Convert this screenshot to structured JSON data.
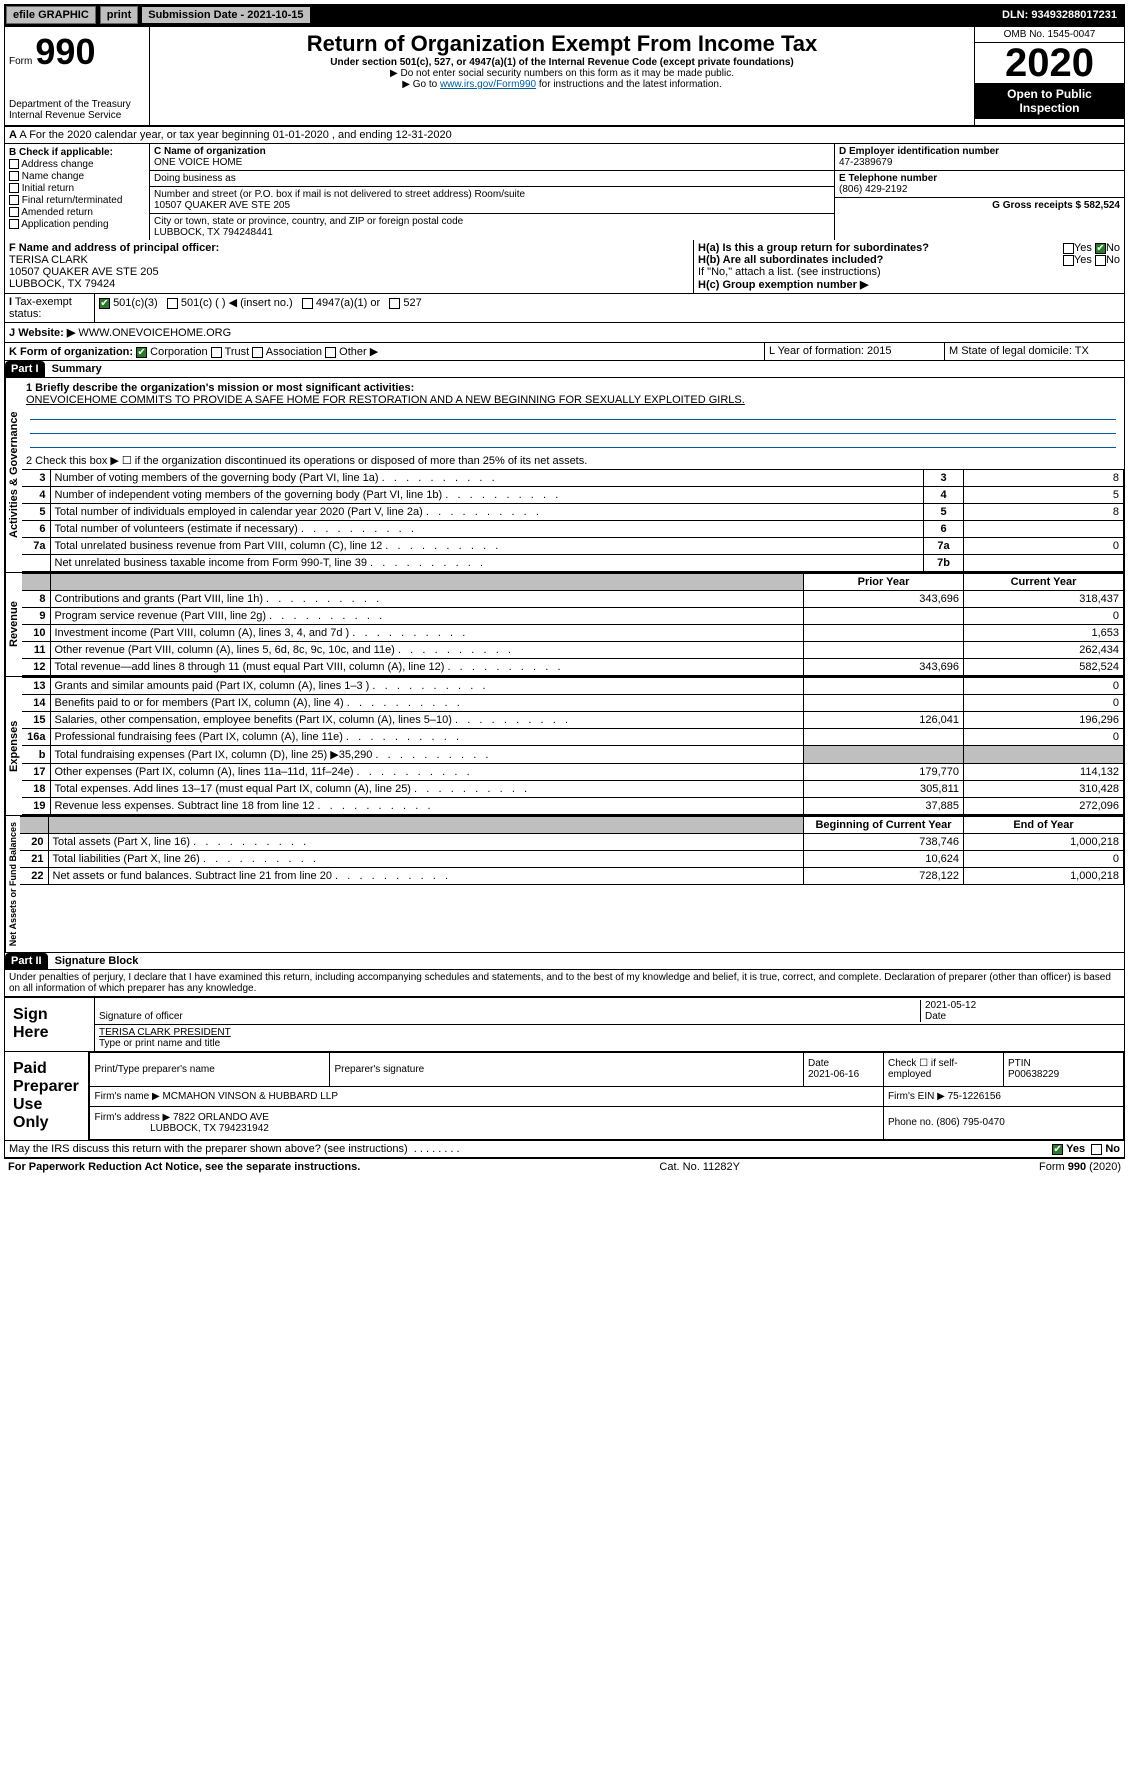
{
  "topbar": {
    "efile": "efile GRAPHIC",
    "print": "print",
    "submission": "Submission Date - 2021-10-15",
    "dln": "DLN: 93493288017231"
  },
  "header": {
    "form_label": "Form",
    "form_num": "990",
    "dept": "Department of the Treasury\nInternal Revenue Service",
    "title": "Return of Organization Exempt From Income Tax",
    "sub": "Under section 501(c), 527, or 4947(a)(1) of the Internal Revenue Code (except private foundations)",
    "note1": "▶ Do not enter social security numbers on this form as it may be made public.",
    "note2_pre": "▶ Go to ",
    "note2_link": "www.irs.gov/Form990",
    "note2_post": " for instructions and the latest information.",
    "omb": "OMB No. 1545-0047",
    "year": "2020",
    "otp": "Open to Public Inspection"
  },
  "rowA": "A For the 2020 calendar year, or tax year beginning 01-01-2020    , and ending 12-31-2020",
  "colB": {
    "label": "B Check if applicable:",
    "items": [
      "Address change",
      "Name change",
      "Initial return",
      "Final return/terminated",
      "Amended return",
      "Application pending"
    ]
  },
  "colC": {
    "name_label": "C Name of organization",
    "name": "ONE VOICE HOME",
    "dba": "Doing business as",
    "addr_label": "Number and street (or P.O. box if mail is not delivered to street address)       Room/suite",
    "addr": "10507 QUAKER AVE STE 205",
    "city_label": "City or town, state or province, country, and ZIP or foreign postal code",
    "city": "LUBBOCK, TX  794248441"
  },
  "colD": {
    "ein_label": "D Employer identification number",
    "ein": "47-2389679",
    "tel_label": "E Telephone number",
    "tel": "(806) 429-2192",
    "gross_label": "G Gross receipts $ 582,524"
  },
  "rowF": {
    "label": "F  Name and address of principal officer:",
    "name": "TERISA CLARK",
    "addr1": "10507 QUAKER AVE STE 205",
    "addr2": "LUBBOCK, TX  79424"
  },
  "rowH": {
    "a": "H(a)  Is this a group return for subordinates?",
    "b": "H(b)  Are all subordinates included?",
    "b_note": "If \"No,\" attach a list. (see instructions)",
    "c": "H(c)  Group exemption number ▶"
  },
  "rowI": {
    "label": "Tax-exempt status:",
    "opts": [
      "501(c)(3)",
      "501(c) (  ) ◀ (insert no.)",
      "4947(a)(1) or",
      "527"
    ]
  },
  "rowJ": {
    "label": "Website: ▶",
    "value": "WWW.ONEVOICEHOME.ORG"
  },
  "rowK": {
    "label": "K Form of organization:",
    "opts": [
      "Corporation",
      "Trust",
      "Association",
      "Other ▶"
    ],
    "L": "L Year of formation: 2015",
    "M": "M State of legal domicile: TX"
  },
  "part1": {
    "tab": "Part I",
    "title": "Summary",
    "q1_label": "1  Briefly describe the organization's mission or most significant activities:",
    "q1_text": "ONEVOICEHOME COMMITS TO PROVIDE A SAFE HOME FOR RESTORATION AND A NEW BEGINNING FOR SEXUALLY EXPLOITED GIRLS.",
    "q2": "2   Check this box ▶ ☐  if the organization discontinued its operations or disposed of more than 25% of its net assets.",
    "lines_gov": [
      {
        "n": "3",
        "d": "Number of voting members of the governing body (Part VI, line 1a)",
        "b": "3",
        "v": "8"
      },
      {
        "n": "4",
        "d": "Number of independent voting members of the governing body (Part VI, line 1b)",
        "b": "4",
        "v": "5"
      },
      {
        "n": "5",
        "d": "Total number of individuals employed in calendar year 2020 (Part V, line 2a)",
        "b": "5",
        "v": "8"
      },
      {
        "n": "6",
        "d": "Total number of volunteers (estimate if necessary)",
        "b": "6",
        "v": ""
      },
      {
        "n": "7a",
        "d": "Total unrelated business revenue from Part VIII, column (C), line 12",
        "b": "7a",
        "v": "0"
      },
      {
        "n": "",
        "d": "Net unrelated business taxable income from Form 990-T, line 39",
        "b": "7b",
        "v": ""
      }
    ],
    "col_headers": {
      "prior": "Prior Year",
      "current": "Current Year"
    },
    "revenue": [
      {
        "n": "8",
        "d": "Contributions and grants (Part VIII, line 1h)",
        "p": "343,696",
        "c": "318,437"
      },
      {
        "n": "9",
        "d": "Program service revenue (Part VIII, line 2g)",
        "p": "",
        "c": "0"
      },
      {
        "n": "10",
        "d": "Investment income (Part VIII, column (A), lines 3, 4, and 7d )",
        "p": "",
        "c": "1,653"
      },
      {
        "n": "11",
        "d": "Other revenue (Part VIII, column (A), lines 5, 6d, 8c, 9c, 10c, and 11e)",
        "p": "",
        "c": "262,434"
      },
      {
        "n": "12",
        "d": "Total revenue—add lines 8 through 11 (must equal Part VIII, column (A), line 12)",
        "p": "343,696",
        "c": "582,524"
      }
    ],
    "expenses": [
      {
        "n": "13",
        "d": "Grants and similar amounts paid (Part IX, column (A), lines 1–3 )",
        "p": "",
        "c": "0"
      },
      {
        "n": "14",
        "d": "Benefits paid to or for members (Part IX, column (A), line 4)",
        "p": "",
        "c": "0"
      },
      {
        "n": "15",
        "d": "Salaries, other compensation, employee benefits (Part IX, column (A), lines 5–10)",
        "p": "126,041",
        "c": "196,296"
      },
      {
        "n": "16a",
        "d": "Professional fundraising fees (Part IX, column (A), line 11e)",
        "p": "",
        "c": "0"
      },
      {
        "n": "b",
        "d": "Total fundraising expenses (Part IX, column (D), line 25) ▶35,290",
        "p": "shade",
        "c": "shade"
      },
      {
        "n": "17",
        "d": "Other expenses (Part IX, column (A), lines 11a–11d, 11f–24e)",
        "p": "179,770",
        "c": "114,132"
      },
      {
        "n": "18",
        "d": "Total expenses. Add lines 13–17 (must equal Part IX, column (A), line 25)",
        "p": "305,811",
        "c": "310,428"
      },
      {
        "n": "19",
        "d": "Revenue less expenses. Subtract line 18 from line 12",
        "p": "37,885",
        "c": "272,096"
      }
    ],
    "net_headers": {
      "begin": "Beginning of Current Year",
      "end": "End of Year"
    },
    "net": [
      {
        "n": "20",
        "d": "Total assets (Part X, line 16)",
        "p": "738,746",
        "c": "1,000,218"
      },
      {
        "n": "21",
        "d": "Total liabilities (Part X, line 26)",
        "p": "10,624",
        "c": "0"
      },
      {
        "n": "22",
        "d": "Net assets or fund balances. Subtract line 21 from line 20",
        "p": "728,122",
        "c": "1,000,218"
      }
    ]
  },
  "part2": {
    "tab": "Part II",
    "title": "Signature Block",
    "decl": "Under penalties of perjury, I declare that I have examined this return, including accompanying schedules and statements, and to the best of my knowledge and belief, it is true, correct, and complete. Declaration of preparer (other than officer) is based on all information of which preparer has any knowledge."
  },
  "sign": {
    "label": "Sign Here",
    "sig": "Signature of officer",
    "date": "2021-05-12",
    "date_label": "Date",
    "name": "TERISA CLARK  PRESIDENT",
    "name_label": "Type or print name and title"
  },
  "paid": {
    "label": "Paid Preparer Use Only",
    "h1": "Print/Type preparer's name",
    "h2": "Preparer's signature",
    "h3": "Date",
    "date": "2021-06-16",
    "h4": "Check ☐ if self-employed",
    "h5": "PTIN",
    "ptin": "P00638229",
    "firm_label": "Firm's name    ▶",
    "firm": "MCMAHON VINSON & HUBBARD LLP",
    "ein_label": "Firm's EIN ▶",
    "ein": "75-1226156",
    "addr_label": "Firm's address ▶",
    "addr": "7822 ORLANDO AVE",
    "addr2": "LUBBOCK, TX  794231942",
    "phone_label": "Phone no.",
    "phone": "(806) 795-0470"
  },
  "discuss": "May the IRS discuss this return with the preparer shown above? (see instructions)",
  "footer": {
    "left": "For Paperwork Reduction Act Notice, see the separate instructions.",
    "mid": "Cat. No. 11282Y",
    "right": "Form 990 (2020)"
  },
  "labels": {
    "gov": "Activities & Governance",
    "rev": "Revenue",
    "exp": "Expenses",
    "net": "Net Assets or Fund Balances",
    "yes": "Yes",
    "no": "No"
  }
}
